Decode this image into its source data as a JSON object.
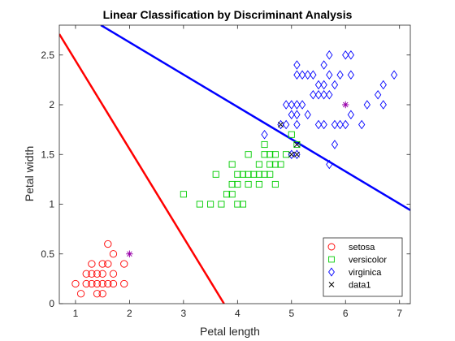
{
  "chart_data": {
    "type": "scatter",
    "title": "Linear Classification by Discriminant Analysis",
    "xlabel": "Petal length",
    "ylabel": "Petal width",
    "xlim": [
      0.7,
      7.2
    ],
    "ylim": [
      0,
      2.8
    ],
    "xticks": [
      1,
      2,
      3,
      4,
      5,
      6,
      7
    ],
    "yticks": [
      0,
      0.5,
      1,
      1.5,
      2,
      2.5
    ],
    "xtick_labels": [
      "1",
      "2",
      "3",
      "4",
      "5",
      "6",
      "7"
    ],
    "ytick_labels": [
      "0",
      "0.5",
      "1",
      "1.5",
      "2",
      "2.5"
    ],
    "grid": false,
    "legend_position": "bottom-right",
    "series": [
      {
        "name": "setosa",
        "marker": "circle",
        "color": "#ff0000",
        "points": [
          [
            1.0,
            0.2
          ],
          [
            1.1,
            0.1
          ],
          [
            1.2,
            0.2
          ],
          [
            1.2,
            0.3
          ],
          [
            1.3,
            0.2
          ],
          [
            1.3,
            0.3
          ],
          [
            1.3,
            0.4
          ],
          [
            1.4,
            0.1
          ],
          [
            1.4,
            0.2
          ],
          [
            1.4,
            0.3
          ],
          [
            1.5,
            0.1
          ],
          [
            1.5,
            0.2
          ],
          [
            1.5,
            0.3
          ],
          [
            1.5,
            0.4
          ],
          [
            1.6,
            0.2
          ],
          [
            1.6,
            0.4
          ],
          [
            1.6,
            0.6
          ],
          [
            1.7,
            0.2
          ],
          [
            1.7,
            0.3
          ],
          [
            1.7,
            0.5
          ],
          [
            1.9,
            0.2
          ],
          [
            1.9,
            0.4
          ]
        ]
      },
      {
        "name": "versicolor",
        "marker": "square",
        "color": "#00cc00",
        "points": [
          [
            3.0,
            1.1
          ],
          [
            3.3,
            1.0
          ],
          [
            3.5,
            1.0
          ],
          [
            3.6,
            1.3
          ],
          [
            3.7,
            1.0
          ],
          [
            3.8,
            1.1
          ],
          [
            3.9,
            1.1
          ],
          [
            3.9,
            1.2
          ],
          [
            3.9,
            1.4
          ],
          [
            4.0,
            1.0
          ],
          [
            4.0,
            1.2
          ],
          [
            4.0,
            1.3
          ],
          [
            4.1,
            1.0
          ],
          [
            4.1,
            1.3
          ],
          [
            4.2,
            1.2
          ],
          [
            4.2,
            1.3
          ],
          [
            4.2,
            1.5
          ],
          [
            4.3,
            1.3
          ],
          [
            4.4,
            1.2
          ],
          [
            4.4,
            1.3
          ],
          [
            4.4,
            1.4
          ],
          [
            4.5,
            1.3
          ],
          [
            4.5,
            1.5
          ],
          [
            4.5,
            1.6
          ],
          [
            4.6,
            1.3
          ],
          [
            4.6,
            1.4
          ],
          [
            4.6,
            1.5
          ],
          [
            4.7,
            1.2
          ],
          [
            4.7,
            1.4
          ],
          [
            4.7,
            1.5
          ],
          [
            4.8,
            1.4
          ],
          [
            4.9,
            1.5
          ],
          [
            5.0,
            1.7
          ],
          [
            5.1,
            1.6
          ]
        ]
      },
      {
        "name": "virginica",
        "marker": "diamond",
        "color": "#0000ff",
        "points": [
          [
            4.5,
            1.7
          ],
          [
            4.8,
            1.8
          ],
          [
            4.9,
            1.8
          ],
          [
            4.9,
            2.0
          ],
          [
            5.0,
            1.5
          ],
          [
            5.0,
            1.9
          ],
          [
            5.0,
            2.0
          ],
          [
            5.1,
            1.5
          ],
          [
            5.1,
            1.8
          ],
          [
            5.1,
            1.9
          ],
          [
            5.1,
            2.0
          ],
          [
            5.1,
            2.3
          ],
          [
            5.1,
            2.4
          ],
          [
            5.2,
            2.0
          ],
          [
            5.2,
            2.3
          ],
          [
            5.3,
            1.9
          ],
          [
            5.3,
            2.3
          ],
          [
            5.4,
            2.1
          ],
          [
            5.4,
            2.3
          ],
          [
            5.5,
            1.8
          ],
          [
            5.5,
            2.1
          ],
          [
            5.5,
            2.2
          ],
          [
            5.6,
            1.8
          ],
          [
            5.6,
            2.1
          ],
          [
            5.6,
            2.2
          ],
          [
            5.6,
            2.4
          ],
          [
            5.7,
            1.4
          ],
          [
            5.7,
            2.1
          ],
          [
            5.7,
            2.3
          ],
          [
            5.7,
            2.5
          ],
          [
            5.8,
            1.6
          ],
          [
            5.8,
            1.8
          ],
          [
            5.8,
            2.2
          ],
          [
            5.9,
            1.8
          ],
          [
            5.9,
            2.3
          ],
          [
            6.0,
            1.8
          ],
          [
            6.0,
            2.5
          ],
          [
            6.1,
            1.9
          ],
          [
            6.1,
            2.3
          ],
          [
            6.1,
            2.5
          ],
          [
            6.3,
            1.8
          ],
          [
            6.4,
            2.0
          ],
          [
            6.6,
            2.1
          ],
          [
            6.7,
            2.0
          ],
          [
            6.7,
            2.2
          ],
          [
            6.9,
            2.3
          ]
        ]
      },
      {
        "name": "data1",
        "marker": "x",
        "color": "#000000",
        "points": [
          [
            4.8,
            1.8
          ],
          [
            5.0,
            1.5
          ],
          [
            5.1,
            1.5
          ],
          [
            5.1,
            1.6
          ]
        ]
      }
    ],
    "highlight_points": {
      "marker": "asterisk",
      "color": "#9900aa",
      "points": [
        [
          2.0,
          0.5
        ],
        [
          6.0,
          2.0
        ]
      ]
    },
    "boundaries": [
      {
        "color": "#ff0000",
        "points": [
          [
            0.7,
            2.71
          ],
          [
            3.75,
            0.0
          ]
        ]
      },
      {
        "color": "#0000ff",
        "points": [
          [
            1.47,
            2.8
          ],
          [
            7.2,
            0.94
          ]
        ]
      }
    ]
  }
}
